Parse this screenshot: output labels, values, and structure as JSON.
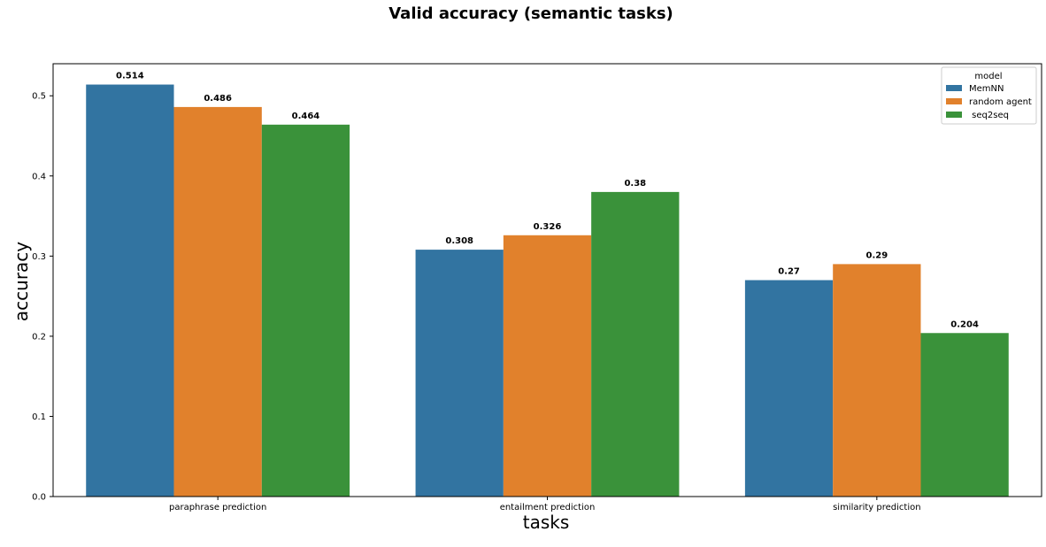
{
  "chart_data": {
    "type": "bar",
    "title": "Valid accuracy (semantic tasks)",
    "xlabel": "tasks",
    "ylabel": "accuracy",
    "categories": [
      "paraphrase prediction",
      "entailment prediction",
      "similarity prediction"
    ],
    "series": [
      {
        "name": "MemNN",
        "values": [
          0.514,
          0.308,
          0.27
        ],
        "value_labels": [
          "0.514",
          "0.308",
          "0.27"
        ],
        "color": "#3274a1"
      },
      {
        "name": "random agent",
        "values": [
          0.486,
          0.326,
          0.29
        ],
        "value_labels": [
          "0.486",
          "0.326",
          "0.29"
        ],
        "color": "#e1812c"
      },
      {
        "name": " seq2seq",
        "values": [
          0.464,
          0.38,
          0.204
        ],
        "value_labels": [
          "0.464",
          "0.38",
          "0.204"
        ],
        "color": "#3a923a"
      }
    ],
    "ylim": [
      0,
      0.54
    ],
    "yticks": [
      0.0,
      0.1,
      0.2,
      0.3,
      0.4,
      0.5
    ],
    "ytick_labels": [
      "0.0",
      "0.1",
      "0.2",
      "0.3",
      "0.4",
      "0.5"
    ],
    "legend": {
      "title": "model",
      "position": "top-right"
    },
    "grid": false
  }
}
